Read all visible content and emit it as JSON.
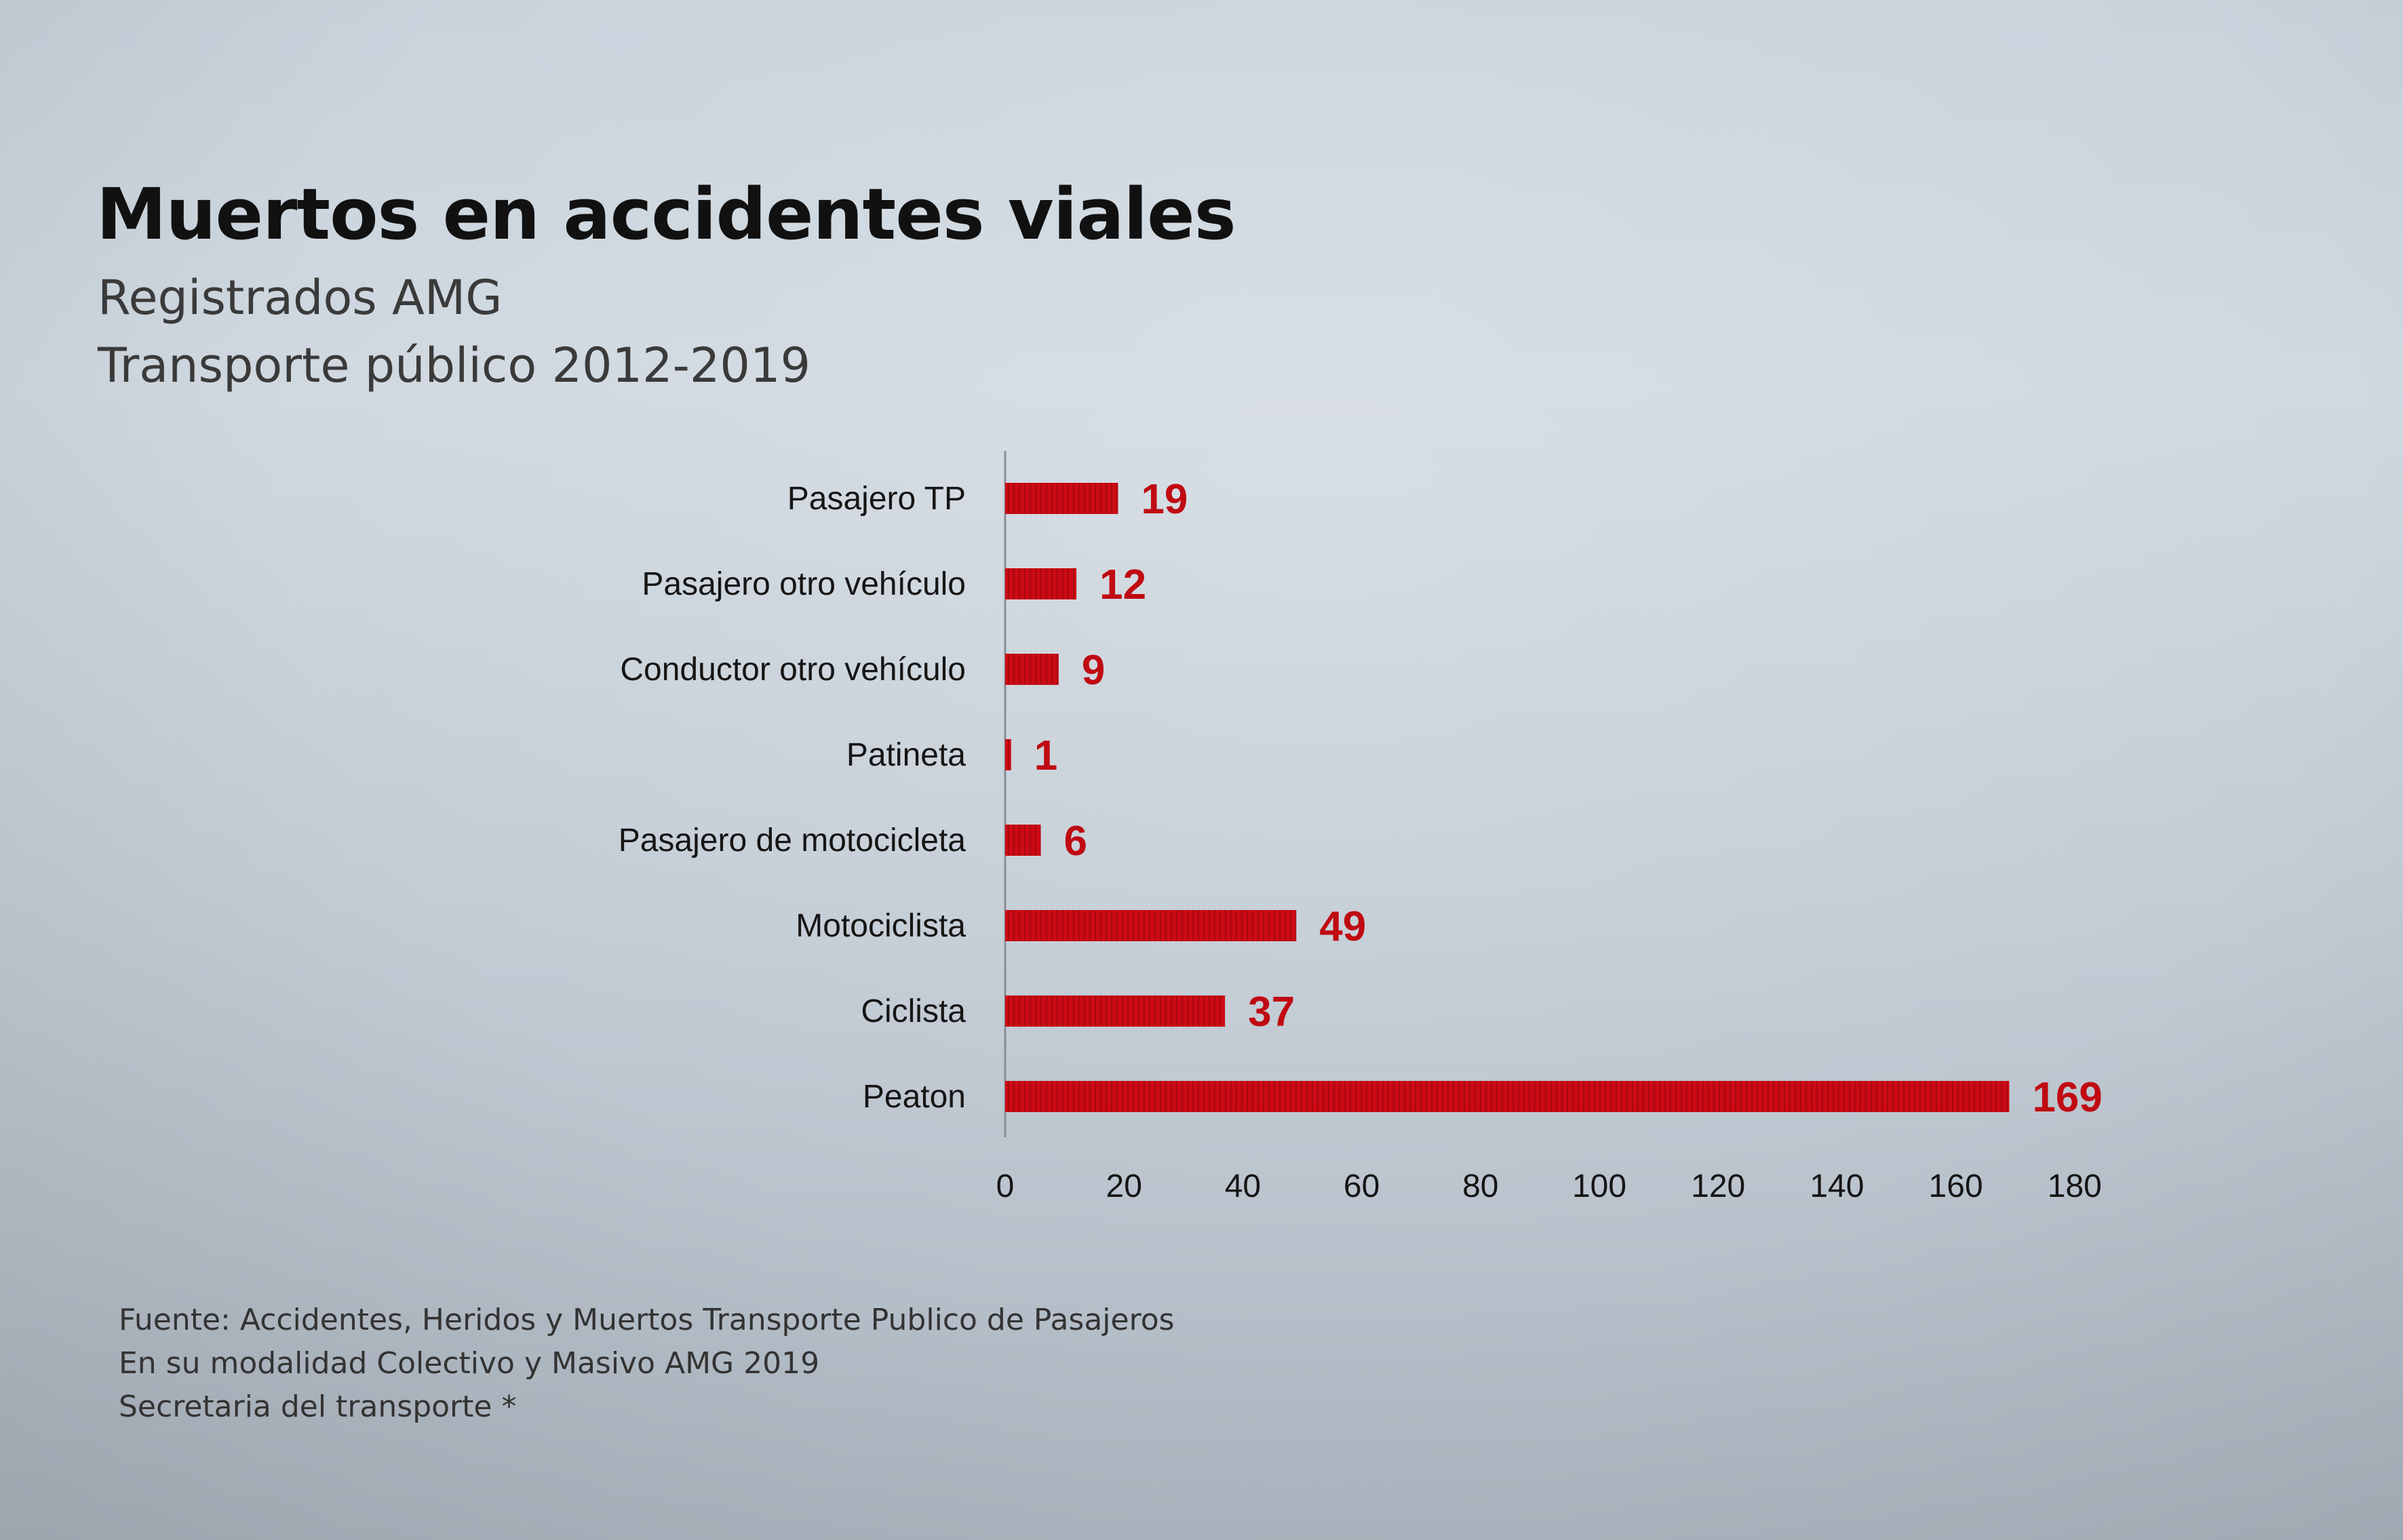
{
  "chart_data": {
    "type": "bar",
    "orientation": "horizontal",
    "title": "Muertos en accidentes viales",
    "subtitle": [
      "Registrados AMG",
      "Transporte público 2012-2019"
    ],
    "categories": [
      "Pasajero TP",
      "Pasajero otro vehículo",
      "Conductor otro vehículo",
      "Patineta",
      "Pasajero de motocicleta",
      "Motociclista",
      "Ciclista",
      "Peaton"
    ],
    "values": [
      19,
      12,
      9,
      1,
      6,
      49,
      37,
      169
    ],
    "data_labels": [
      "19",
      "12",
      "9",
      "1",
      "6",
      "49",
      "37",
      "169"
    ],
    "xlim": [
      0,
      180
    ],
    "x_ticks": [
      "0",
      "20",
      "40",
      "60",
      "80",
      "100",
      "120",
      "140",
      "160",
      "180"
    ],
    "xlabel": "",
    "ylabel": "",
    "grid": false,
    "legend": "none",
    "bar_color": "#cc0a14",
    "label_color": "#c00a12"
  },
  "footer": {
    "line1": "Fuente: Accidentes, Heridos y Muertos Transporte Publico de Pasajeros",
    "line2": "En su modalidad Colectivo y Masivo AMG 2019",
    "line3": "Secretaria del transporte *"
  }
}
